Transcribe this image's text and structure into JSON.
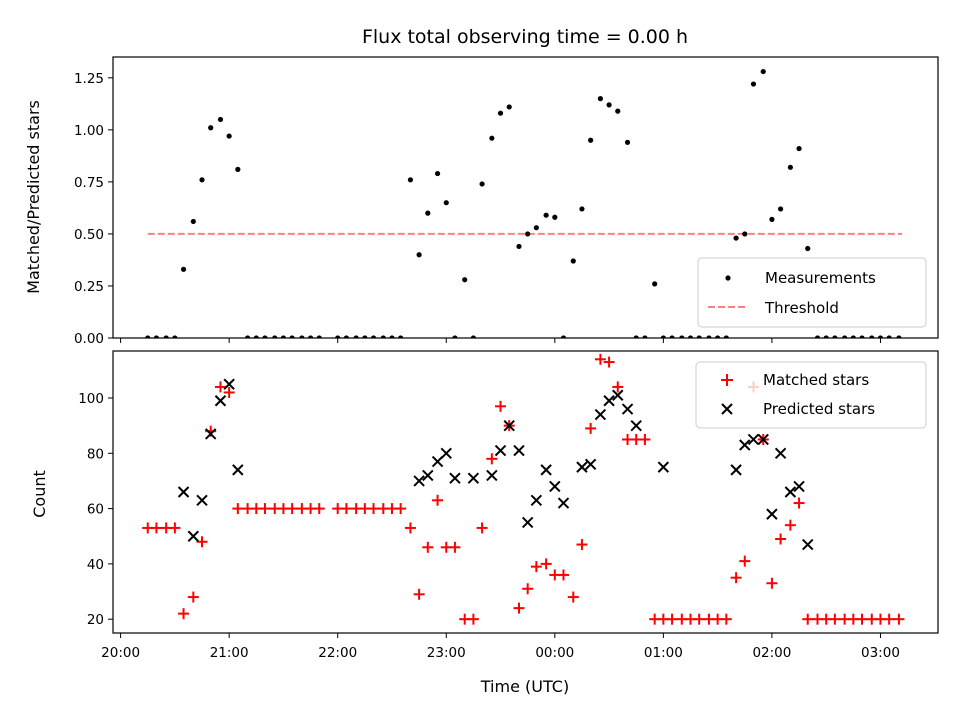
{
  "chart_data": [
    {
      "type": "scatter",
      "title": "Flux total observing time = 0.00 h",
      "xlabel": "",
      "ylabel": "Matched/Predicted stars",
      "ylim": [
        0,
        1.35
      ],
      "yticks": [
        "0.00",
        "0.25",
        "0.50",
        "0.75",
        "1.00",
        "1.25"
      ],
      "ytick_values": [
        0,
        0.25,
        0.5,
        0.75,
        1.0,
        1.25
      ],
      "x_hours": [
        20.25,
        20.33,
        20.42,
        20.5,
        20.58,
        20.67,
        20.75,
        20.83,
        20.92,
        21.0,
        21.08,
        21.17,
        21.25,
        21.33,
        21.42,
        21.5,
        21.58,
        21.67,
        21.75,
        21.83,
        22.0,
        22.08,
        22.17,
        22.25,
        22.33,
        22.42,
        22.5,
        22.58,
        22.67,
        22.75,
        22.83,
        22.92,
        23.0,
        23.08,
        23.17,
        23.25,
        23.33,
        23.42,
        23.5,
        23.58,
        23.67,
        23.75,
        23.83,
        23.92,
        24.0,
        24.08,
        24.17,
        24.25,
        24.33,
        24.42,
        24.5,
        24.58,
        24.67,
        24.75,
        24.83,
        24.92,
        25.0,
        25.08,
        25.17,
        25.25,
        25.33,
        25.42,
        25.5,
        25.58,
        25.67,
        25.75,
        25.83,
        25.92,
        26.0,
        26.08,
        26.17,
        26.25,
        26.33,
        26.42,
        26.5,
        26.58,
        26.67,
        26.75,
        26.83,
        26.92,
        27.0,
        27.08,
        27.17
      ],
      "values": [
        0,
        0,
        0,
        0,
        0.33,
        0.56,
        0.76,
        1.01,
        1.05,
        0.97,
        0.81,
        0,
        0,
        0,
        0,
        0,
        0,
        0,
        0,
        0,
        0,
        0,
        0,
        0,
        0,
        0,
        0,
        0,
        0.76,
        0.4,
        0.6,
        0.79,
        0.65,
        0,
        0.28,
        0,
        0.74,
        0.96,
        1.08,
        1.11,
        0.44,
        0.5,
        0.53,
        0.59,
        0.58,
        0,
        0.37,
        0.62,
        0.95,
        1.15,
        1.12,
        1.09,
        0.94,
        0,
        0,
        0.26,
        0,
        0,
        0,
        0,
        0,
        0,
        0,
        0,
        0.48,
        0.5,
        1.22,
        1.28,
        0.57,
        0.62,
        0.82,
        0.91,
        0.43,
        0,
        0,
        0,
        0,
        0,
        0,
        0,
        0,
        0,
        0
      ],
      "threshold": 0.5,
      "threshold_x": [
        20.25,
        27.2
      ],
      "threshold_color": "#ff8080",
      "marker_color": "#000000",
      "legend": [
        "Measurements",
        "Threshold"
      ],
      "legend_placement": "lower-right"
    },
    {
      "type": "scatter",
      "title": "",
      "xlabel": "Time (UTC)",
      "ylabel": "Count",
      "ylim": [
        15,
        117
      ],
      "yticks": [
        "20",
        "40",
        "60",
        "80",
        "100"
      ],
      "ytick_values": [
        20,
        40,
        60,
        80,
        100
      ],
      "xticks": [
        "20:00",
        "21:00",
        "22:00",
        "23:00",
        "00:00",
        "01:00",
        "02:00",
        "03:00"
      ],
      "xtick_hours": [
        20,
        21,
        22,
        23,
        24,
        25,
        26,
        27
      ],
      "xlim_hours": [
        19.93,
        27.53
      ],
      "series": [
        {
          "name": "Matched stars",
          "marker": "+",
          "color": "#ff0000",
          "x_hours": [
            20.25,
            20.33,
            20.42,
            20.5,
            20.58,
            20.67,
            20.75,
            20.83,
            20.92,
            21.0,
            21.08,
            21.17,
            21.25,
            21.33,
            21.42,
            21.5,
            21.58,
            21.67,
            21.75,
            21.83,
            22.0,
            22.08,
            22.17,
            22.25,
            22.33,
            22.42,
            22.5,
            22.58,
            22.67,
            22.75,
            22.83,
            22.92,
            23.0,
            23.08,
            23.17,
            23.25,
            23.33,
            23.42,
            23.5,
            23.58,
            23.67,
            23.75,
            23.83,
            23.92,
            24.0,
            24.08,
            24.17,
            24.25,
            24.33,
            24.42,
            24.5,
            24.58,
            24.67,
            24.75,
            24.83,
            24.92,
            25.0,
            25.08,
            25.17,
            25.25,
            25.33,
            25.42,
            25.5,
            25.58,
            25.67,
            25.75,
            25.83,
            25.92,
            26.0,
            26.08,
            26.17,
            26.25,
            26.33,
            26.42,
            26.5,
            26.58,
            26.67,
            26.75,
            26.83,
            26.92,
            27.0,
            27.08,
            27.17
          ],
          "values": [
            53,
            53,
            53,
            53,
            22,
            28,
            48,
            88,
            104,
            102,
            60,
            60,
            60,
            60,
            60,
            60,
            60,
            60,
            60,
            60,
            60,
            60,
            60,
            60,
            60,
            60,
            60,
            60,
            53,
            29,
            46,
            63,
            46,
            46,
            20,
            20,
            53,
            78,
            97,
            90,
            24,
            31,
            39,
            40,
            36,
            36,
            28,
            47,
            89,
            114,
            113,
            104,
            85,
            85,
            85,
            20,
            20,
            20,
            20,
            20,
            20,
            20,
            20,
            20,
            35,
            41,
            104,
            85,
            33,
            49,
            54,
            62,
            20,
            20,
            20,
            20,
            20,
            20,
            20,
            20,
            20,
            20,
            20
          ]
        },
        {
          "name": "Predicted stars",
          "marker": "x",
          "color": "#000000",
          "x_hours": [
            20.58,
            20.67,
            20.75,
            20.83,
            20.92,
            21.0,
            21.08,
            22.75,
            22.83,
            22.92,
            23.0,
            23.08,
            23.25,
            23.42,
            23.5,
            23.58,
            23.67,
            23.75,
            23.83,
            23.92,
            24.0,
            24.08,
            24.25,
            24.33,
            24.42,
            24.5,
            24.58,
            24.67,
            24.75,
            25.0,
            25.67,
            25.75,
            25.83,
            25.92,
            26.0,
            26.08,
            26.17,
            26.25,
            26.33
          ],
          "values": [
            66,
            50,
            63,
            87,
            99,
            105,
            74,
            70,
            72,
            77,
            80,
            71,
            71,
            72,
            81,
            90,
            81,
            55,
            63,
            74,
            68,
            62,
            75,
            76,
            94,
            99,
            101,
            96,
            90,
            75,
            74,
            83,
            85,
            85,
            58,
            80,
            66,
            68,
            47
          ]
        }
      ],
      "legend_placement": "upper-right"
    }
  ]
}
